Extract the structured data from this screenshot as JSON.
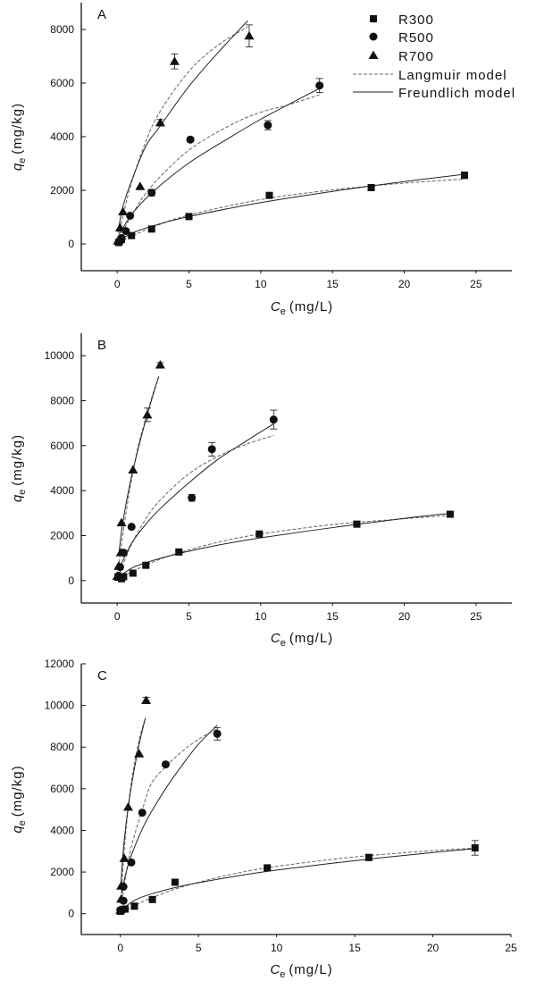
{
  "chart_data": [
    {
      "type": "scatter",
      "panel_label": "A",
      "xlabel": {
        "symbol": "C",
        "sub": "e",
        "unit": "(mg/L)"
      },
      "ylabel": {
        "symbol": "q",
        "sub": "e",
        "unit": "(mg/kg)"
      },
      "xlim": [
        -2.5,
        27.5
      ],
      "ylim": [
        -1000,
        9000
      ],
      "xticks": [
        0,
        5,
        10,
        15,
        20,
        25
      ],
      "yticks": [
        0,
        2000,
        4000,
        6000,
        8000
      ],
      "grid": false,
      "legend": {
        "placement": "top-right",
        "entries": [
          "R300",
          "R500",
          "R700",
          "Langmuir model",
          "Freundlich model"
        ]
      },
      "series": [
        {
          "name": "R300",
          "marker": "square",
          "x": [
            0.1,
            0.3,
            1.0,
            2.4,
            5.0,
            10.6,
            17.7,
            24.2
          ],
          "y": [
            50,
            170,
            310,
            555,
            1020,
            1810,
            2100,
            2560
          ],
          "yerr": [
            0,
            0,
            0,
            0,
            0,
            80,
            120,
            120
          ]
        },
        {
          "name": "R500",
          "marker": "circle",
          "x": [
            0.2,
            0.3,
            0.6,
            0.9,
            2.4,
            5.1,
            10.5,
            14.1
          ],
          "y": [
            90,
            220,
            480,
            1050,
            1910,
            3890,
            4430,
            5910
          ],
          "yerr": [
            0,
            0,
            0,
            0,
            120,
            80,
            170,
            260
          ]
        },
        {
          "name": "R700",
          "marker": "triangle",
          "x": [
            0.05,
            0.2,
            0.4,
            1.6,
            3.0,
            4.0,
            9.2
          ],
          "y": [
            110,
            600,
            1200,
            2140,
            4520,
            6810,
            7760
          ],
          "yerr": [
            0,
            0,
            0,
            0,
            120,
            280,
            410
          ]
        }
      ],
      "models": [
        {
          "name": "Langmuir model",
          "of": "R300",
          "x": [
            0.1,
            1,
            2.5,
            5,
            10,
            15,
            20,
            24.2
          ],
          "y": [
            30,
            282,
            628,
            1077,
            1654,
            2015,
            2267,
            2420
          ]
        },
        {
          "name": "Freundlich model",
          "of": "R300",
          "x": [
            0.1,
            1,
            2.5,
            5,
            10,
            15,
            20,
            24.2
          ],
          "y": [
            100,
            392,
            675,
            1020,
            1540,
            1960,
            2325,
            2600
          ]
        },
        {
          "name": "Langmuir model",
          "of": "R500",
          "x": [
            0.2,
            1,
            2.4,
            5,
            8,
            10,
            12,
            14.1
          ],
          "y": [
            237,
            1061,
            2157,
            3500,
            4462,
            4911,
            5200,
            5564
          ]
        },
        {
          "name": "Freundlich model",
          "of": "R500",
          "x": [
            0.2,
            1,
            2.4,
            5,
            8,
            10,
            12,
            14.1
          ],
          "y": [
            400,
            1095,
            1900,
            3020,
            4020,
            4650,
            5220,
            5800
          ]
        },
        {
          "name": "Langmuir model",
          "of": "R700",
          "x": [
            0.05,
            0.4,
            1,
            2,
            3,
            5,
            7,
            9.1
          ],
          "y": [
            140,
            1032,
            2282,
            3826,
            4950,
            6440,
            7404,
            8100
          ]
        },
        {
          "name": "Freundlich model",
          "of": "R700",
          "x": [
            0.05,
            0.4,
            1,
            2,
            3,
            5,
            7,
            9.1
          ],
          "y": [
            425,
            1390,
            2350,
            3650,
            4400,
            5880,
            7120,
            8330
          ]
        }
      ]
    },
    {
      "type": "scatter",
      "panel_label": "B",
      "xlabel": {
        "symbol": "C",
        "sub": "e",
        "unit": "(mg/L)"
      },
      "ylabel": {
        "symbol": "q",
        "sub": "e",
        "unit": "(mg/kg)"
      },
      "xlim": [
        -2.5,
        27.5
      ],
      "ylim": [
        -1000,
        11000
      ],
      "xticks": [
        0,
        5,
        10,
        15,
        20,
        25
      ],
      "yticks": [
        0,
        2000,
        4000,
        6000,
        8000,
        10000
      ],
      "grid": false,
      "series": [
        {
          "name": "R300",
          "marker": "square",
          "x": [
            0.05,
            0.3,
            0.45,
            1.1,
            2.0,
            4.3,
            9.9,
            16.7,
            23.2
          ],
          "y": [
            150,
            80,
            170,
            330,
            680,
            1270,
            2070,
            2510,
            2950
          ],
          "yerr": [
            0,
            0,
            0,
            0,
            0,
            0,
            50,
            50,
            80
          ]
        },
        {
          "name": "R500",
          "marker": "circle",
          "x": [
            0.1,
            0.2,
            0.45,
            1.0,
            5.2,
            6.6,
            10.9
          ],
          "y": [
            210,
            600,
            1240,
            2390,
            3680,
            5840,
            7160
          ],
          "yerr": [
            0,
            0,
            0,
            0,
            150,
            300,
            420
          ]
        },
        {
          "name": "R700",
          "marker": "triangle",
          "x": [
            0.0,
            0.1,
            0.25,
            0.3,
            1.1,
            2.1,
            3.0
          ],
          "y": [
            190,
            640,
            1240,
            2570,
            4920,
            7370,
            9590
          ],
          "yerr": [
            0,
            0,
            0,
            0,
            0,
            300,
            100
          ]
        }
      ],
      "models": [
        {
          "name": "Langmuir model",
          "of": "R300",
          "x": [
            0.1,
            1,
            2,
            4,
            7,
            10,
            15,
            20,
            23.2
          ],
          "y": [
            41,
            375,
            687,
            1176,
            1700,
            2070,
            2490,
            2750,
            2900
          ]
        },
        {
          "name": "Freundlich model",
          "of": "R300",
          "x": [
            0.1,
            1,
            2,
            4,
            7,
            10,
            15,
            20,
            23.2
          ],
          "y": [
            158,
            549,
            797,
            1157,
            1571,
            1900,
            2355,
            2765,
            2990
          ]
        },
        {
          "name": "Langmuir model",
          "of": "R500",
          "x": [
            0.2,
            1,
            2,
            3,
            5,
            7,
            9,
            10.9
          ],
          "y": [
            374,
            1609,
            2750,
            3583,
            4750,
            5517,
            6062,
            6451
          ]
        },
        {
          "name": "Freundlich model",
          "of": "R500",
          "x": [
            0.2,
            1,
            2,
            3,
            5,
            7,
            9,
            10.9
          ],
          "y": [
            630,
            1656,
            2510,
            3200,
            4350,
            5380,
            6210,
            6970
          ]
        },
        {
          "name": "Langmuir model",
          "of": "R700",
          "x": [
            0.1,
            0.3,
            0.6,
            1,
            1.5,
            2,
            2.5,
            2.9
          ],
          "y": [
            565,
            1605,
            2944,
            4488,
            6077,
            7200,
            8335,
            9050
          ]
        },
        {
          "name": "Freundlich model",
          "of": "R700",
          "x": [
            0.1,
            0.3,
            0.6,
            1,
            1.5,
            2,
            2.5,
            2.9
          ],
          "y": [
            1085,
            2167,
            3356,
            4630,
            5957,
            7160,
            8257,
            9080
          ]
        }
      ]
    },
    {
      "type": "scatter",
      "panel_label": "C",
      "xlabel": {
        "symbol": "C",
        "sub": "e",
        "unit": "(mg/L)"
      },
      "ylabel": {
        "symbol": "q",
        "sub": "e",
        "unit": "(mg/kg)"
      },
      "xlim": [
        -2.5,
        25
      ],
      "ylim": [
        -1000,
        12000
      ],
      "xticks": [
        0,
        5,
        10,
        15,
        20,
        25
      ],
      "yticks": [
        0,
        2000,
        4000,
        6000,
        8000,
        10000,
        12000
      ],
      "grid": false,
      "series": [
        {
          "name": "R300",
          "marker": "square",
          "x": [
            0.0,
            0.3,
            0.9,
            2.05,
            3.5,
            9.4,
            15.9,
            22.7
          ],
          "y": [
            115,
            220,
            360,
            680,
            1510,
            2200,
            2700,
            3160
          ],
          "yerr": [
            0,
            0,
            0,
            0,
            0,
            100,
            150,
            350
          ]
        },
        {
          "name": "R500",
          "marker": "circle",
          "x": [
            0.0,
            0.2,
            0.2,
            0.7,
            1.4,
            2.9,
            6.2
          ],
          "y": [
            170,
            620,
            1300,
            2460,
            4850,
            7170,
            8640
          ],
          "yerr": [
            0,
            0,
            0,
            0,
            0,
            0,
            300
          ]
        },
        {
          "name": "R700",
          "marker": "triangle",
          "x": [
            0.0,
            0.05,
            0.05,
            0.25,
            0.5,
            1.2,
            1.65
          ],
          "y": [
            170,
            700,
            1330,
            2650,
            5120,
            7680,
            10240
          ],
          "yerr": [
            0,
            0,
            0,
            0,
            0,
            0,
            150
          ]
        }
      ],
      "models": [
        {
          "name": "Langmuir model",
          "of": "R300",
          "x": [
            0.1,
            1,
            2,
            4,
            7,
            10,
            15,
            20,
            22.7
          ],
          "y": [
            45,
            413,
            757,
            1297,
            1870,
            2270,
            2724,
            3027,
            3150
          ]
        },
        {
          "name": "Freundlich model",
          "of": "R300",
          "x": [
            0.1,
            1,
            2,
            4,
            7,
            10,
            15,
            20,
            22.7
          ],
          "y": [
            219,
            677,
            949,
            1337,
            1751,
            2092,
            2546,
            2937,
            3125
          ]
        },
        {
          "name": "Langmuir model",
          "of": "R500",
          "x": [
            0.1,
            0.3,
            0.7,
            1.4,
            2,
            3,
            4,
            5,
            6.2
          ],
          "y": [
            592,
            1616,
            3200,
            4973,
            6265,
            7131,
            7820,
            8375,
            8880
          ]
        },
        {
          "name": "Freundlich model",
          "of": "R500",
          "x": [
            0.1,
            0.3,
            0.7,
            1.4,
            2,
            3,
            4,
            5,
            6.2
          ],
          "y": [
            976,
            1773,
            2793,
            4060,
            4912,
            6120,
            7178,
            8140,
            9050
          ]
        },
        {
          "name": "Langmuir model",
          "of": "R700",
          "x": [
            0.05,
            0.1,
            0.25,
            0.5,
            0.8,
            1.2,
            1.6
          ],
          "y": [
            727,
            1389,
            3055,
            5092,
            6789,
            8332,
            9400
          ]
        },
        {
          "name": "Freundlich model",
          "of": "R700",
          "x": [
            0.05,
            0.1,
            0.25,
            0.5,
            0.8,
            1.2,
            1.6
          ],
          "y": [
            1505,
            2180,
            3530,
            5100,
            6550,
            8120,
            9400
          ]
        }
      ]
    }
  ],
  "colors": {
    "markers": "#111111",
    "langmuir": "#666666",
    "freundlich": "#222222",
    "axis": "#111111"
  }
}
